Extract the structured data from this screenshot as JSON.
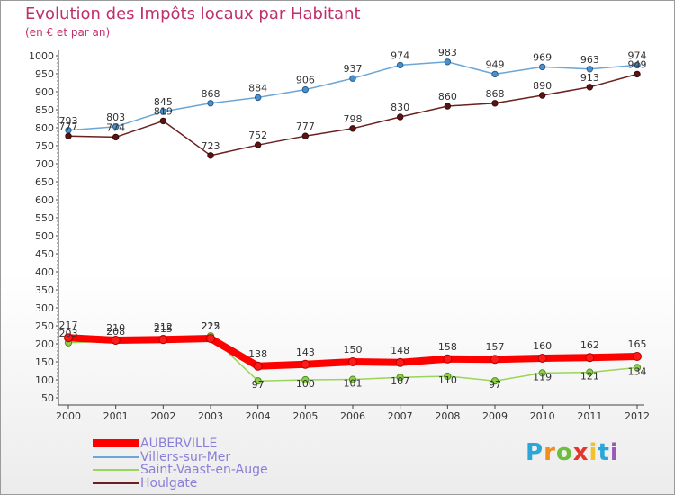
{
  "title": "Evolution des Impôts locaux par Habitant",
  "subtitle": "(en € et par an)",
  "logo_letters": [
    "P",
    "r",
    "o",
    "x",
    "i",
    "t",
    "i"
  ],
  "logo_colors": [
    "#2aa7d8",
    "#f28c1b",
    "#6cbf3a",
    "#e5362b",
    "#f2c12e",
    "#2aa7d8",
    "#9b59b6"
  ],
  "chart_data": {
    "type": "line",
    "x": [
      "2000",
      "2001",
      "2002",
      "2003",
      "2004",
      "2005",
      "2006",
      "2007",
      "2008",
      "2009",
      "2010",
      "2011",
      "2012"
    ],
    "ylim": [
      50,
      1000
    ],
    "yticks": [
      50,
      100,
      150,
      200,
      250,
      300,
      350,
      400,
      450,
      500,
      550,
      600,
      650,
      700,
      750,
      800,
      850,
      900,
      950,
      1000
    ],
    "grid": false,
    "legend_position": "bottom-left",
    "series": [
      {
        "name": "AUBERVILLE",
        "color": "#ff0000",
        "values": [
          217,
          210,
          212,
          215,
          138,
          143,
          150,
          148,
          158,
          157,
          160,
          162,
          165
        ],
        "labels": [
          "217",
          "210",
          "212",
          "215",
          "138",
          "143",
          "150",
          "148",
          "158",
          "157",
          "160",
          "162",
          "165"
        ]
      },
      {
        "name": "Villers-sur-Mer",
        "color": "#6aa6d8",
        "values": [
          793,
          803,
          845,
          868,
          884,
          906,
          937,
          974,
          983,
          949,
          969,
          963,
          974
        ],
        "labels": [
          "793",
          "803",
          "845",
          "868",
          "884",
          "906",
          "937",
          "974",
          "983",
          "949",
          "969",
          "963",
          "974"
        ]
      },
      {
        "name": "Saint-Vaast-en-Auge",
        "color": "#9ad45a",
        "values": [
          203,
          208,
          215,
          222,
          97,
          100,
          101,
          107,
          110,
          97,
          119,
          121,
          134
        ],
        "labels": [
          "203",
          "208",
          "215",
          "222",
          "97",
          "100",
          "101",
          "107",
          "110",
          "97",
          "119",
          "121",
          "134"
        ]
      },
      {
        "name": "Houlgate",
        "color": "#6b1f1f",
        "values": [
          777,
          774,
          819,
          723,
          752,
          777,
          798,
          830,
          860,
          868,
          890,
          913,
          949
        ],
        "labels": [
          "777",
          "774",
          "819",
          "723",
          "752",
          "777",
          "798",
          "830",
          "860",
          "868",
          "890",
          "913",
          "949"
        ]
      }
    ]
  }
}
